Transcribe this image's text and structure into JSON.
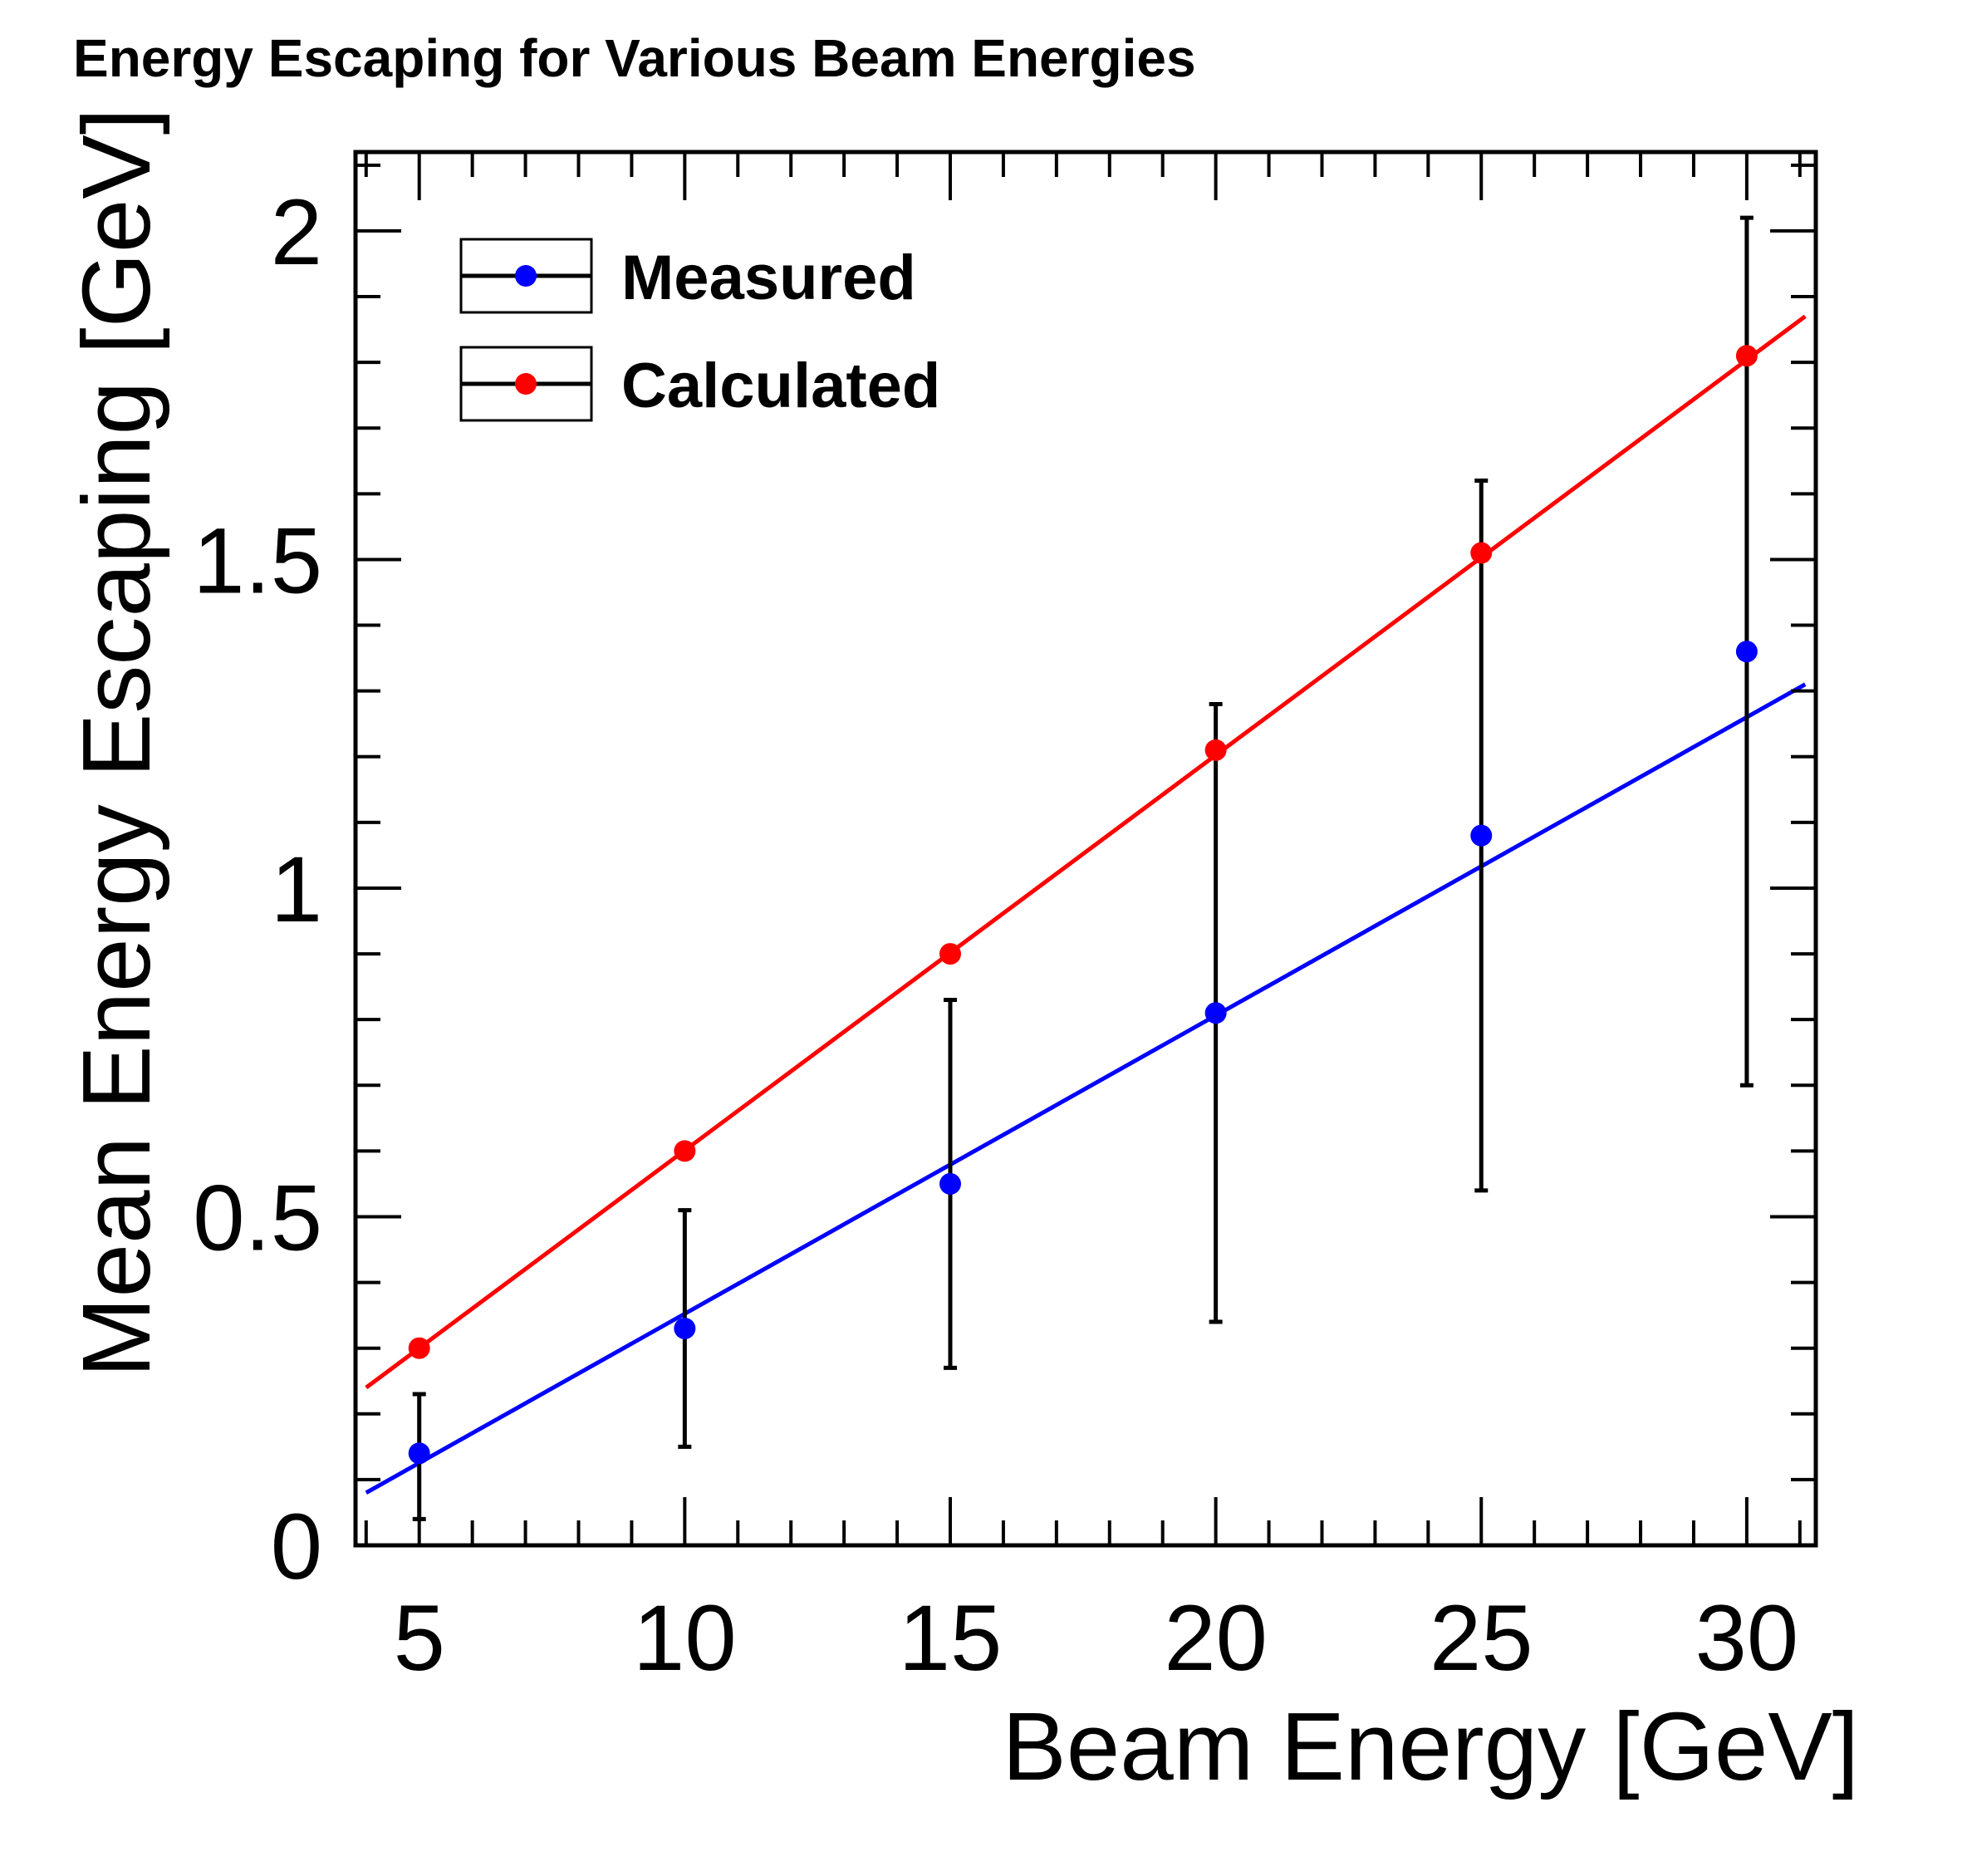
{
  "chart_data": {
    "type": "scatter",
    "title": "Energy Escaping for Various Beam Energies",
    "xlabel": "Beam Energy [GeV]",
    "ylabel": "Mean Energy Escaping [GeV]",
    "xlim": [
      3.8,
      31.3
    ],
    "ylim": [
      0,
      2.12
    ],
    "x_ticks": [
      5,
      10,
      15,
      20,
      25,
      30
    ],
    "x_tick_labels": [
      "5",
      "10",
      "15",
      "20",
      "25",
      "30"
    ],
    "y_ticks": [
      0,
      0.5,
      1,
      1.5,
      2
    ],
    "y_tick_labels": [
      "0",
      "0.5",
      "1",
      "1.5",
      "2"
    ],
    "grid": false,
    "legend_position": "top-left",
    "series": [
      {
        "name": "Measured",
        "color": "#0000ff",
        "x": [
          5,
          10,
          15,
          20,
          25,
          30
        ],
        "y": [
          0.14,
          0.33,
          0.55,
          0.81,
          1.08,
          1.36
        ],
        "y_err_low": [
          0.04,
          0.15,
          0.27,
          0.34,
          0.54,
          0.7
        ],
        "y_err_high": [
          0.23,
          0.51,
          0.83,
          1.28,
          1.62,
          2.02
        ],
        "fit_line": {
          "x": [
            4.0,
            31.1
          ],
          "y": [
            0.08,
            1.31
          ]
        }
      },
      {
        "name": "Calculated",
        "color": "#ff0000",
        "x": [
          5,
          10,
          15,
          20,
          25,
          30
        ],
        "y": [
          0.3,
          0.6,
          0.9,
          1.21,
          1.51,
          1.81
        ],
        "fit_line": {
          "x": [
            4.0,
            31.1
          ],
          "y": [
            0.24,
            1.87
          ]
        }
      }
    ]
  }
}
